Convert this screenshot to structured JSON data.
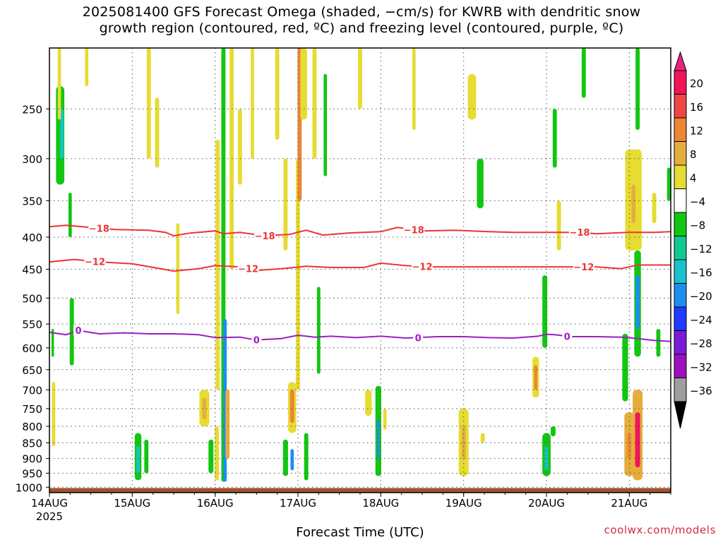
{
  "title_line1": "2025081400 GFS Forecast Omega (shaded, −cm/s) for KWRB with dendritic snow",
  "title_line2": "growth region (contoured, red, ºC) and freezing level (contoured, purple, ºC)",
  "credit": "coolwx.com/models",
  "chart_data": {
    "type": "heatmap",
    "title": "2025081400 GFS Forecast Omega (shaded, −cm/s) for KWRB with dendritic snow growth region (contoured, red, ºC) and freezing level (contoured, purple, ºC)",
    "xlabel": "Forecast Time (UTC)",
    "ylabel": "",
    "x_range_days_from_14AUG00Z": [
      0,
      7.5
    ],
    "y_range_hpa": [
      1020,
      200
    ],
    "y_scale": "log-pressure",
    "grid": true,
    "x_ticks": [
      {
        "label": "14AUG",
        "day": 0
      },
      {
        "label": "15AUG",
        "day": 1
      },
      {
        "label": "16AUG",
        "day": 2
      },
      {
        "label": "17AUG",
        "day": 3
      },
      {
        "label": "18AUG",
        "day": 4
      },
      {
        "label": "19AUG",
        "day": 5
      },
      {
        "label": "20AUG",
        "day": 6
      },
      {
        "label": "21AUG",
        "day": 7
      }
    ],
    "x_sublabel": "2025",
    "y_ticks": [
      250,
      300,
      350,
      400,
      450,
      500,
      550,
      600,
      650,
      700,
      750,
      800,
      850,
      900,
      950,
      1000
    ],
    "colorbar": {
      "labels": [
        "20",
        "16",
        "12",
        "8",
        "4",
        "−4",
        "−8",
        "−12",
        "−16",
        "−20",
        "−24",
        "−28",
        "−32",
        "−36"
      ],
      "colors": [
        "#f0145a",
        "#f04646",
        "#ee8533",
        "#e5ae3c",
        "#e6dc32",
        "#ffffff",
        "#11c710",
        "#12c892",
        "#17c3cd",
        "#1a8fef",
        "#1e3cff",
        "#7a1bd8",
        "#a00fbe",
        "#9e9e9e"
      ],
      "top_color": "#e8247a",
      "bottom_color": "#000000"
    },
    "contours": [
      {
        "label": "−18",
        "color": "#ee3333",
        "points": [
          [
            0,
            385
          ],
          [
            0.2,
            383
          ],
          [
            0.5,
            386
          ],
          [
            0.8,
            389
          ],
          [
            1.2,
            390
          ],
          [
            1.4,
            393
          ],
          [
            1.5,
            398
          ],
          [
            1.7,
            394
          ],
          [
            2.0,
            391
          ],
          [
            2.1,
            395
          ],
          [
            2.3,
            393
          ],
          [
            2.6,
            398
          ],
          [
            2.9,
            396
          ],
          [
            3.1,
            390
          ],
          [
            3.3,
            397
          ],
          [
            3.6,
            394
          ],
          [
            4.0,
            392
          ],
          [
            4.2,
            386
          ],
          [
            4.5,
            391
          ],
          [
            4.9,
            390
          ],
          [
            5.3,
            392
          ],
          [
            5.6,
            393
          ],
          [
            6.0,
            393
          ],
          [
            6.4,
            393
          ],
          [
            6.6,
            395
          ],
          [
            7.0,
            393
          ],
          [
            7.3,
            393
          ],
          [
            7.5,
            392
          ]
        ],
        "label_days": [
          0.6,
          2.6,
          4.4,
          6.4
        ]
      },
      {
        "label": "−12",
        "color": "#ee3333",
        "points": [
          [
            0,
            438
          ],
          [
            0.3,
            434
          ],
          [
            0.6,
            438
          ],
          [
            1.0,
            441
          ],
          [
            1.3,
            448
          ],
          [
            1.5,
            453
          ],
          [
            1.8,
            449
          ],
          [
            2.0,
            444
          ],
          [
            2.3,
            446
          ],
          [
            2.5,
            452
          ],
          [
            2.8,
            449
          ],
          [
            3.1,
            445
          ],
          [
            3.4,
            447
          ],
          [
            3.8,
            447
          ],
          [
            4.0,
            440
          ],
          [
            4.3,
            444
          ],
          [
            4.6,
            446
          ],
          [
            5.0,
            446
          ],
          [
            5.4,
            446
          ],
          [
            5.8,
            446
          ],
          [
            6.2,
            446
          ],
          [
            6.6,
            446
          ],
          [
            6.9,
            449
          ],
          [
            7.1,
            443
          ],
          [
            7.3,
            443
          ],
          [
            7.5,
            443
          ]
        ],
        "label_days": [
          0.55,
          2.4,
          4.5,
          6.45
        ]
      },
      {
        "label": "0",
        "color": "#9a1fc4",
        "points": [
          [
            0,
            567
          ],
          [
            0.2,
            572
          ],
          [
            0.35,
            563
          ],
          [
            0.6,
            570
          ],
          [
            0.9,
            568
          ],
          [
            1.2,
            570
          ],
          [
            1.5,
            570
          ],
          [
            1.8,
            572
          ],
          [
            2.0,
            578
          ],
          [
            2.3,
            577
          ],
          [
            2.5,
            583
          ],
          [
            2.8,
            580
          ],
          [
            3.0,
            573
          ],
          [
            3.2,
            577
          ],
          [
            3.4,
            575
          ],
          [
            3.7,
            578
          ],
          [
            4.0,
            575
          ],
          [
            4.3,
            579
          ],
          [
            4.7,
            576
          ],
          [
            5.0,
            576
          ],
          [
            5.3,
            578
          ],
          [
            5.6,
            579
          ],
          [
            5.9,
            575
          ],
          [
            6.0,
            571
          ],
          [
            6.1,
            572
          ],
          [
            6.3,
            576
          ],
          [
            6.6,
            576
          ],
          [
            6.9,
            577
          ],
          [
            7.1,
            580
          ],
          [
            7.3,
            584
          ],
          [
            7.5,
            586
          ]
        ],
        "label_days": [
          0.35,
          2.5,
          4.45,
          6.25
        ]
      }
    ],
    "shaded_cells": [
      {
        "day": 0.13,
        "p_top": 230,
        "p_bot": 330,
        "w": 0.1,
        "val": -8
      },
      {
        "day": 0.15,
        "p_top": 250,
        "p_bot": 300,
        "w": 0.04,
        "val": -12
      },
      {
        "day": 0.25,
        "p_top": 340,
        "p_bot": 400,
        "w": 0.04,
        "val": -8
      },
      {
        "day": 0.27,
        "p_top": 500,
        "p_bot": 640,
        "w": 0.05,
        "val": -8
      },
      {
        "day": 0.04,
        "p_top": 560,
        "p_bot": 620,
        "w": 0.03,
        "val": -8
      },
      {
        "day": 0.05,
        "p_top": 680,
        "p_bot": 860,
        "w": 0.04,
        "val": 4
      },
      {
        "day": 0.12,
        "p_top": 200,
        "p_bot": 260,
        "w": 0.04,
        "val": 4
      },
      {
        "day": 0.45,
        "p_top": 200,
        "p_bot": 230,
        "w": 0.04,
        "val": 4
      },
      {
        "day": 1.07,
        "p_top": 820,
        "p_bot": 975,
        "w": 0.08,
        "val": -8
      },
      {
        "day": 1.07,
        "p_top": 860,
        "p_bot": 950,
        "w": 0.04,
        "val": -12
      },
      {
        "day": 1.17,
        "p_top": 840,
        "p_bot": 950,
        "w": 0.05,
        "val": -8
      },
      {
        "day": 1.2,
        "p_top": 200,
        "p_bot": 300,
        "w": 0.05,
        "val": 4
      },
      {
        "day": 1.3,
        "p_top": 240,
        "p_bot": 310,
        "w": 0.05,
        "val": 4
      },
      {
        "day": 1.55,
        "p_top": 380,
        "p_bot": 530,
        "w": 0.04,
        "val": 4
      },
      {
        "day": 1.87,
        "p_top": 700,
        "p_bot": 800,
        "w": 0.12,
        "val": 4
      },
      {
        "day": 1.87,
        "p_top": 720,
        "p_bot": 780,
        "w": 0.05,
        "val": 8
      },
      {
        "day": 1.95,
        "p_top": 840,
        "p_bot": 950,
        "w": 0.06,
        "val": -8
      },
      {
        "day": 2.1,
        "p_top": 200,
        "p_bot": 980,
        "w": 0.05,
        "val": -8
      },
      {
        "day": 2.12,
        "p_top": 540,
        "p_bot": 980,
        "w": 0.04,
        "val": -16
      },
      {
        "day": 2.03,
        "p_top": 280,
        "p_bot": 700,
        "w": 0.05,
        "val": 4
      },
      {
        "day": 2.2,
        "p_top": 200,
        "p_bot": 450,
        "w": 0.05,
        "val": 4
      },
      {
        "day": 2.02,
        "p_top": 800,
        "p_bot": 975,
        "w": 0.05,
        "val": 4
      },
      {
        "day": 2.15,
        "p_top": 700,
        "p_bot": 900,
        "w": 0.05,
        "val": 8
      },
      {
        "day": 2.3,
        "p_top": 250,
        "p_bot": 330,
        "w": 0.05,
        "val": 4
      },
      {
        "day": 2.45,
        "p_top": 200,
        "p_bot": 300,
        "w": 0.04,
        "val": 4
      },
      {
        "day": 2.75,
        "p_top": 200,
        "p_bot": 280,
        "w": 0.05,
        "val": 4
      },
      {
        "day": 2.85,
        "p_top": 300,
        "p_bot": 420,
        "w": 0.05,
        "val": 4
      },
      {
        "day": 2.93,
        "p_top": 680,
        "p_bot": 820,
        "w": 0.1,
        "val": 4
      },
      {
        "day": 2.93,
        "p_top": 700,
        "p_bot": 790,
        "w": 0.05,
        "val": 12
      },
      {
        "day": 2.85,
        "p_top": 840,
        "p_bot": 960,
        "w": 0.06,
        "val": -8
      },
      {
        "day": 2.93,
        "p_top": 870,
        "p_bot": 940,
        "w": 0.04,
        "val": -16
      },
      {
        "day": 3.0,
        "p_top": 300,
        "p_bot": 700,
        "w": 0.05,
        "val": 4
      },
      {
        "day": 3.02,
        "p_top": 200,
        "p_bot": 350,
        "w": 0.05,
        "val": 12
      },
      {
        "day": 3.07,
        "p_top": 200,
        "p_bot": 260,
        "w": 0.08,
        "val": 4
      },
      {
        "day": 3.1,
        "p_top": 820,
        "p_bot": 975,
        "w": 0.05,
        "val": -8
      },
      {
        "day": 3.2,
        "p_top": 200,
        "p_bot": 300,
        "w": 0.05,
        "val": 4
      },
      {
        "day": 3.25,
        "p_top": 480,
        "p_bot": 660,
        "w": 0.04,
        "val": -8
      },
      {
        "day": 3.33,
        "p_top": 220,
        "p_bot": 320,
        "w": 0.04,
        "val": -8
      },
      {
        "day": 3.75,
        "p_top": 200,
        "p_bot": 250,
        "w": 0.05,
        "val": 4
      },
      {
        "day": 3.85,
        "p_top": 700,
        "p_bot": 770,
        "w": 0.08,
        "val": 4
      },
      {
        "day": 3.97,
        "p_top": 690,
        "p_bot": 960,
        "w": 0.07,
        "val": -8
      },
      {
        "day": 3.97,
        "p_top": 780,
        "p_bot": 900,
        "w": 0.03,
        "val": -16
      },
      {
        "day": 4.05,
        "p_top": 750,
        "p_bot": 810,
        "w": 0.04,
        "val": 4
      },
      {
        "day": 4.4,
        "p_top": 200,
        "p_bot": 270,
        "w": 0.04,
        "val": 4
      },
      {
        "day": 5.0,
        "p_top": 750,
        "p_bot": 960,
        "w": 0.12,
        "val": 4
      },
      {
        "day": 5.0,
        "p_top": 800,
        "p_bot": 900,
        "w": 0.05,
        "val": 8
      },
      {
        "day": 5.23,
        "p_top": 820,
        "p_bot": 850,
        "w": 0.05,
        "val": 4
      },
      {
        "day": 5.1,
        "p_top": 220,
        "p_bot": 260,
        "w": 0.1,
        "val": 4
      },
      {
        "day": 5.2,
        "p_top": 300,
        "p_bot": 360,
        "w": 0.08,
        "val": -8
      },
      {
        "day": 6.0,
        "p_top": 820,
        "p_bot": 960,
        "w": 0.1,
        "val": -8
      },
      {
        "day": 6.0,
        "p_top": 860,
        "p_bot": 940,
        "w": 0.04,
        "val": -12
      },
      {
        "day": 6.08,
        "p_top": 800,
        "p_bot": 830,
        "w": 0.06,
        "val": -8
      },
      {
        "day": 5.87,
        "p_top": 620,
        "p_bot": 720,
        "w": 0.08,
        "val": 4
      },
      {
        "day": 5.87,
        "p_top": 640,
        "p_bot": 700,
        "w": 0.04,
        "val": 12
      },
      {
        "day": 5.98,
        "p_top": 460,
        "p_bot": 600,
        "w": 0.06,
        "val": -8
      },
      {
        "day": 6.1,
        "p_top": 250,
        "p_bot": 310,
        "w": 0.05,
        "val": -8
      },
      {
        "day": 6.45,
        "p_top": 200,
        "p_bot": 240,
        "w": 0.05,
        "val": -8
      },
      {
        "day": 6.15,
        "p_top": 350,
        "p_bot": 420,
        "w": 0.05,
        "val": 4
      },
      {
        "day": 7.0,
        "p_top": 760,
        "p_bot": 960,
        "w": 0.12,
        "val": 8
      },
      {
        "day": 7.0,
        "p_top": 820,
        "p_bot": 900,
        "w": 0.05,
        "val": 12
      },
      {
        "day": 7.1,
        "p_top": 700,
        "p_bot": 975,
        "w": 0.12,
        "val": 8
      },
      {
        "day": 7.1,
        "p_top": 760,
        "p_bot": 930,
        "w": 0.06,
        "val": 20
      },
      {
        "day": 7.1,
        "p_top": 420,
        "p_bot": 620,
        "w": 0.08,
        "val": -8
      },
      {
        "day": 7.1,
        "p_top": 460,
        "p_bot": 560,
        "w": 0.05,
        "val": -16
      },
      {
        "day": 6.95,
        "p_top": 570,
        "p_bot": 730,
        "w": 0.07,
        "val": -8
      },
      {
        "day": 7.05,
        "p_top": 290,
        "p_bot": 420,
        "w": 0.2,
        "val": 4
      },
      {
        "day": 7.05,
        "p_top": 330,
        "p_bot": 380,
        "w": 0.05,
        "val": 8
      },
      {
        "day": 7.1,
        "p_top": 200,
        "p_bot": 270,
        "w": 0.05,
        "val": -8
      },
      {
        "day": 7.35,
        "p_top": 560,
        "p_bot": 620,
        "w": 0.05,
        "val": -8
      },
      {
        "day": 7.48,
        "p_top": 310,
        "p_bot": 350,
        "w": 0.05,
        "val": -8
      },
      {
        "day": 7.3,
        "p_top": 340,
        "p_bot": 380,
        "w": 0.05,
        "val": 4
      }
    ],
    "ground_color": "#a0522d"
  }
}
